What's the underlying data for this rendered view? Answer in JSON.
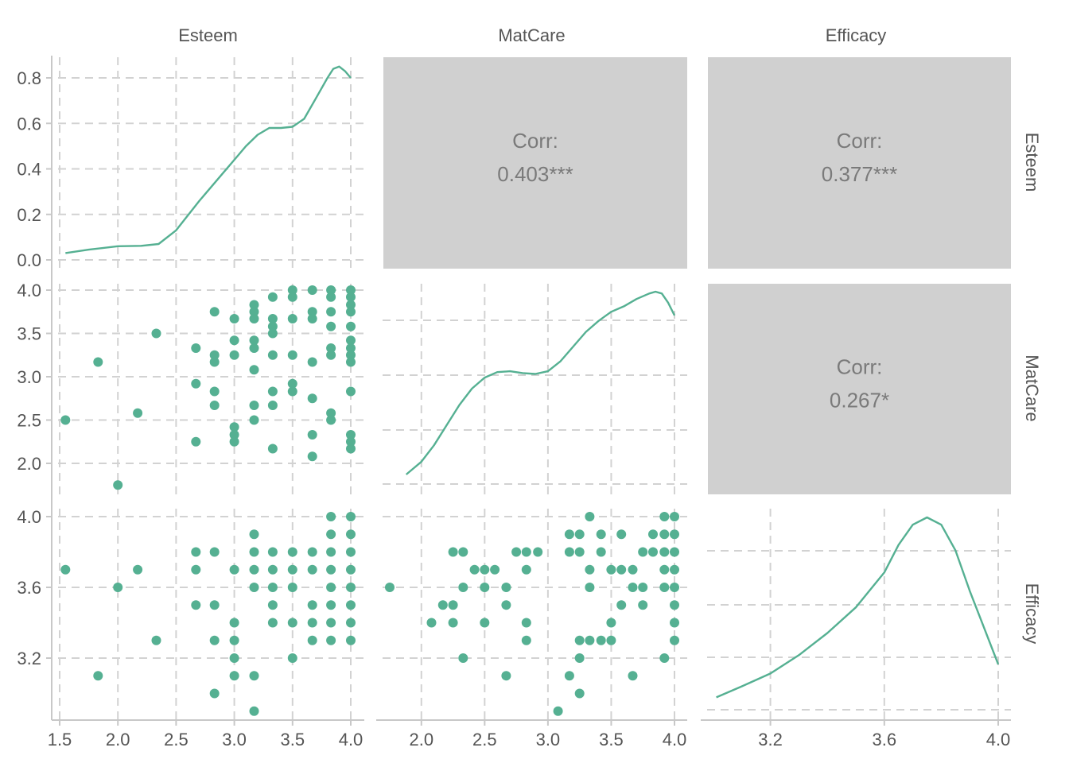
{
  "colors": {
    "point": "#55B092",
    "line": "#55B092",
    "corr_panel": "#D0D0D0",
    "grid": "#D2D2D2",
    "axis": "#C8C8C8",
    "text": "#555555",
    "corr_text": "#7A7A7A"
  },
  "chart_data": {
    "type": "scatter",
    "variables": [
      "Esteem",
      "MatCare",
      "Efficacy"
    ],
    "axis_ticks": {
      "Esteem": {
        "x": [
          "1.5",
          "2.0",
          "2.5",
          "3.0",
          "3.5",
          "4.0"
        ],
        "density_y": [
          "0.0",
          "0.2",
          "0.4",
          "0.6",
          "0.8"
        ]
      },
      "MatCare": {
        "x": [
          "2.0",
          "2.5",
          "3.0",
          "3.5",
          "4.0"
        ],
        "y": [
          "2.0",
          "2.5",
          "3.0",
          "3.5",
          "4.0"
        ]
      },
      "Efficacy": {
        "x": [
          "3.2",
          "3.6",
          "4.0"
        ],
        "y": [
          "3.2",
          "3.6",
          "4.0"
        ]
      }
    },
    "ranges": {
      "Esteem": [
        1.5,
        4.0
      ],
      "MatCare": [
        1.75,
        4.0
      ],
      "Efficacy": [
        3.0,
        4.0
      ],
      "esteem_density": [
        0,
        0.85
      ]
    },
    "correlations": [
      {
        "row": "Esteem",
        "col": "MatCare",
        "label": "Corr:",
        "value": "0.403***"
      },
      {
        "row": "Esteem",
        "col": "Efficacy",
        "label": "Corr:",
        "value": "0.377***"
      },
      {
        "row": "MatCare",
        "col": "Efficacy",
        "label": "Corr:",
        "value": "0.267*"
      }
    ],
    "density": {
      "Esteem": {
        "x": [
          1.55,
          1.75,
          2.0,
          2.2,
          2.35,
          2.5,
          2.7,
          2.9,
          3.0,
          3.1,
          3.2,
          3.3,
          3.4,
          3.5,
          3.6,
          3.7,
          3.8,
          3.85,
          3.9,
          3.95,
          4.0
        ],
        "y": [
          0.03,
          0.045,
          0.06,
          0.062,
          0.07,
          0.13,
          0.26,
          0.38,
          0.44,
          0.5,
          0.55,
          0.58,
          0.58,
          0.585,
          0.62,
          0.71,
          0.8,
          0.84,
          0.85,
          0.83,
          0.8
        ]
      },
      "MatCare": {
        "x": [
          1.88,
          2.0,
          2.1,
          2.2,
          2.3,
          2.4,
          2.5,
          2.6,
          2.7,
          2.8,
          2.9,
          3.0,
          3.1,
          3.2,
          3.3,
          3.4,
          3.5,
          3.6,
          3.7,
          3.8,
          3.85,
          3.9,
          3.95,
          4.0
        ],
        "y": [
          0.0,
          0.07,
          0.16,
          0.27,
          0.38,
          0.47,
          0.53,
          0.56,
          0.565,
          0.555,
          0.55,
          0.565,
          0.62,
          0.7,
          0.78,
          0.84,
          0.89,
          0.92,
          0.96,
          0.99,
          1.0,
          0.99,
          0.94,
          0.87
        ]
      },
      "Efficacy": {
        "x": [
          3.01,
          3.1,
          3.2,
          3.3,
          3.4,
          3.5,
          3.6,
          3.65,
          3.7,
          3.75,
          3.8,
          3.85,
          3.9,
          3.95,
          4.0
        ],
        "y": [
          0.02,
          0.08,
          0.15,
          0.25,
          0.37,
          0.51,
          0.7,
          0.85,
          0.96,
          1.0,
          0.96,
          0.82,
          0.6,
          0.4,
          0.2
        ]
      }
    },
    "series": [
      {
        "x_var": "Esteem",
        "y_var": "MatCare",
        "points": [
          [
            1.55,
            2.5
          ],
          [
            1.83,
            3.17
          ],
          [
            2.0,
            1.75
          ],
          [
            2.17,
            2.58
          ],
          [
            2.33,
            3.5
          ],
          [
            2.67,
            3.33
          ],
          [
            2.67,
            2.92
          ],
          [
            2.67,
            2.25
          ],
          [
            2.83,
            3.75
          ],
          [
            2.83,
            3.25
          ],
          [
            2.83,
            3.17
          ],
          [
            2.83,
            2.83
          ],
          [
            2.83,
            2.67
          ],
          [
            3.0,
            3.67
          ],
          [
            3.0,
            3.42
          ],
          [
            3.0,
            3.25
          ],
          [
            3.0,
            2.42
          ],
          [
            3.0,
            2.33
          ],
          [
            3.0,
            2.25
          ],
          [
            3.17,
            3.83
          ],
          [
            3.17,
            3.75
          ],
          [
            3.17,
            3.67
          ],
          [
            3.17,
            3.42
          ],
          [
            3.17,
            3.33
          ],
          [
            3.17,
            3.08
          ],
          [
            3.17,
            2.67
          ],
          [
            3.17,
            2.5
          ],
          [
            3.33,
            3.92
          ],
          [
            3.33,
            3.67
          ],
          [
            3.33,
            3.58
          ],
          [
            3.33,
            3.5
          ],
          [
            3.33,
            3.25
          ],
          [
            3.33,
            2.83
          ],
          [
            3.33,
            2.67
          ],
          [
            3.33,
            2.17
          ],
          [
            3.5,
            4.0
          ],
          [
            3.5,
            3.92
          ],
          [
            3.5,
            3.67
          ],
          [
            3.5,
            3.25
          ],
          [
            3.5,
            2.92
          ],
          [
            3.5,
            2.83
          ],
          [
            3.67,
            4.0
          ],
          [
            3.67,
            3.75
          ],
          [
            3.67,
            3.67
          ],
          [
            3.67,
            3.17
          ],
          [
            3.67,
            2.75
          ],
          [
            3.67,
            2.33
          ],
          [
            3.67,
            2.08
          ],
          [
            3.83,
            4.0
          ],
          [
            3.83,
            3.92
          ],
          [
            3.83,
            3.75
          ],
          [
            3.83,
            3.58
          ],
          [
            3.83,
            3.33
          ],
          [
            3.83,
            3.25
          ],
          [
            3.83,
            2.58
          ],
          [
            3.83,
            2.5
          ],
          [
            4.0,
            4.0
          ],
          [
            4.0,
            3.92
          ],
          [
            4.0,
            3.83
          ],
          [
            4.0,
            3.75
          ],
          [
            4.0,
            3.58
          ],
          [
            4.0,
            3.42
          ],
          [
            4.0,
            3.33
          ],
          [
            4.0,
            3.25
          ],
          [
            4.0,
            3.17
          ],
          [
            4.0,
            2.83
          ],
          [
            4.0,
            2.33
          ],
          [
            4.0,
            2.25
          ],
          [
            4.0,
            2.17
          ]
        ]
      },
      {
        "x_var": "Esteem",
        "y_var": "Efficacy",
        "points": [
          [
            1.55,
            3.7
          ],
          [
            1.83,
            3.1
          ],
          [
            2.0,
            3.6
          ],
          [
            2.17,
            3.7
          ],
          [
            2.33,
            3.3
          ],
          [
            2.67,
            3.8
          ],
          [
            2.67,
            3.7
          ],
          [
            2.67,
            3.5
          ],
          [
            2.83,
            3.8
          ],
          [
            2.83,
            3.5
          ],
          [
            2.83,
            3.3
          ],
          [
            2.83,
            3.0
          ],
          [
            3.0,
            3.7
          ],
          [
            3.0,
            3.4
          ],
          [
            3.0,
            3.3
          ],
          [
            3.0,
            3.2
          ],
          [
            3.0,
            3.1
          ],
          [
            3.17,
            3.9
          ],
          [
            3.17,
            3.8
          ],
          [
            3.17,
            3.7
          ],
          [
            3.17,
            3.6
          ],
          [
            3.17,
            3.1
          ],
          [
            3.17,
            2.9
          ],
          [
            3.33,
            3.8
          ],
          [
            3.33,
            3.7
          ],
          [
            3.33,
            3.6
          ],
          [
            3.33,
            3.5
          ],
          [
            3.33,
            3.4
          ],
          [
            3.5,
            3.8
          ],
          [
            3.5,
            3.7
          ],
          [
            3.5,
            3.6
          ],
          [
            3.5,
            3.4
          ],
          [
            3.5,
            3.2
          ],
          [
            3.67,
            3.8
          ],
          [
            3.67,
            3.7
          ],
          [
            3.67,
            3.5
          ],
          [
            3.67,
            3.4
          ],
          [
            3.67,
            3.3
          ],
          [
            3.83,
            4.0
          ],
          [
            3.83,
            3.9
          ],
          [
            3.83,
            3.8
          ],
          [
            3.83,
            3.7
          ],
          [
            3.83,
            3.6
          ],
          [
            3.83,
            3.5
          ],
          [
            3.83,
            3.4
          ],
          [
            3.83,
            3.3
          ],
          [
            4.0,
            4.0
          ],
          [
            4.0,
            3.9
          ],
          [
            4.0,
            3.8
          ],
          [
            4.0,
            3.7
          ],
          [
            4.0,
            3.6
          ],
          [
            4.0,
            3.5
          ],
          [
            4.0,
            3.4
          ],
          [
            4.0,
            3.3
          ]
        ]
      },
      {
        "x_var": "MatCare",
        "y_var": "Efficacy",
        "points": [
          [
            1.75,
            3.6
          ],
          [
            2.08,
            3.4
          ],
          [
            2.17,
            3.5
          ],
          [
            2.25,
            3.8
          ],
          [
            2.25,
            3.5
          ],
          [
            2.25,
            3.4
          ],
          [
            2.33,
            3.8
          ],
          [
            2.33,
            3.6
          ],
          [
            2.33,
            3.2
          ],
          [
            2.42,
            3.7
          ],
          [
            2.5,
            3.7
          ],
          [
            2.5,
            3.6
          ],
          [
            2.5,
            3.4
          ],
          [
            2.58,
            3.7
          ],
          [
            2.67,
            3.6
          ],
          [
            2.67,
            3.5
          ],
          [
            2.67,
            3.1
          ],
          [
            2.75,
            3.8
          ],
          [
            2.83,
            3.8
          ],
          [
            2.83,
            3.7
          ],
          [
            2.83,
            3.4
          ],
          [
            2.83,
            3.3
          ],
          [
            2.92,
            3.8
          ],
          [
            3.08,
            2.9
          ],
          [
            3.17,
            3.9
          ],
          [
            3.17,
            3.8
          ],
          [
            3.17,
            3.1
          ],
          [
            3.25,
            3.9
          ],
          [
            3.25,
            3.8
          ],
          [
            3.25,
            3.3
          ],
          [
            3.25,
            3.2
          ],
          [
            3.25,
            3.0
          ],
          [
            3.33,
            4.0
          ],
          [
            3.33,
            3.7
          ],
          [
            3.33,
            3.6
          ],
          [
            3.33,
            3.3
          ],
          [
            3.42,
            3.9
          ],
          [
            3.42,
            3.8
          ],
          [
            3.42,
            3.3
          ],
          [
            3.5,
            3.7
          ],
          [
            3.5,
            3.4
          ],
          [
            3.5,
            3.3
          ],
          [
            3.58,
            3.9
          ],
          [
            3.58,
            3.7
          ],
          [
            3.58,
            3.5
          ],
          [
            3.67,
            3.7
          ],
          [
            3.67,
            3.6
          ],
          [
            3.67,
            3.1
          ],
          [
            3.75,
            3.8
          ],
          [
            3.75,
            3.6
          ],
          [
            3.75,
            3.5
          ],
          [
            3.83,
            3.9
          ],
          [
            3.83,
            3.8
          ],
          [
            3.92,
            4.0
          ],
          [
            3.92,
            3.9
          ],
          [
            3.92,
            3.8
          ],
          [
            3.92,
            3.7
          ],
          [
            3.92,
            3.6
          ],
          [
            3.92,
            3.2
          ],
          [
            4.0,
            4.0
          ],
          [
            4.0,
            3.9
          ],
          [
            4.0,
            3.8
          ],
          [
            4.0,
            3.7
          ],
          [
            4.0,
            3.6
          ],
          [
            4.0,
            3.5
          ],
          [
            4.0,
            3.4
          ],
          [
            4.0,
            3.3
          ]
        ]
      }
    ]
  }
}
